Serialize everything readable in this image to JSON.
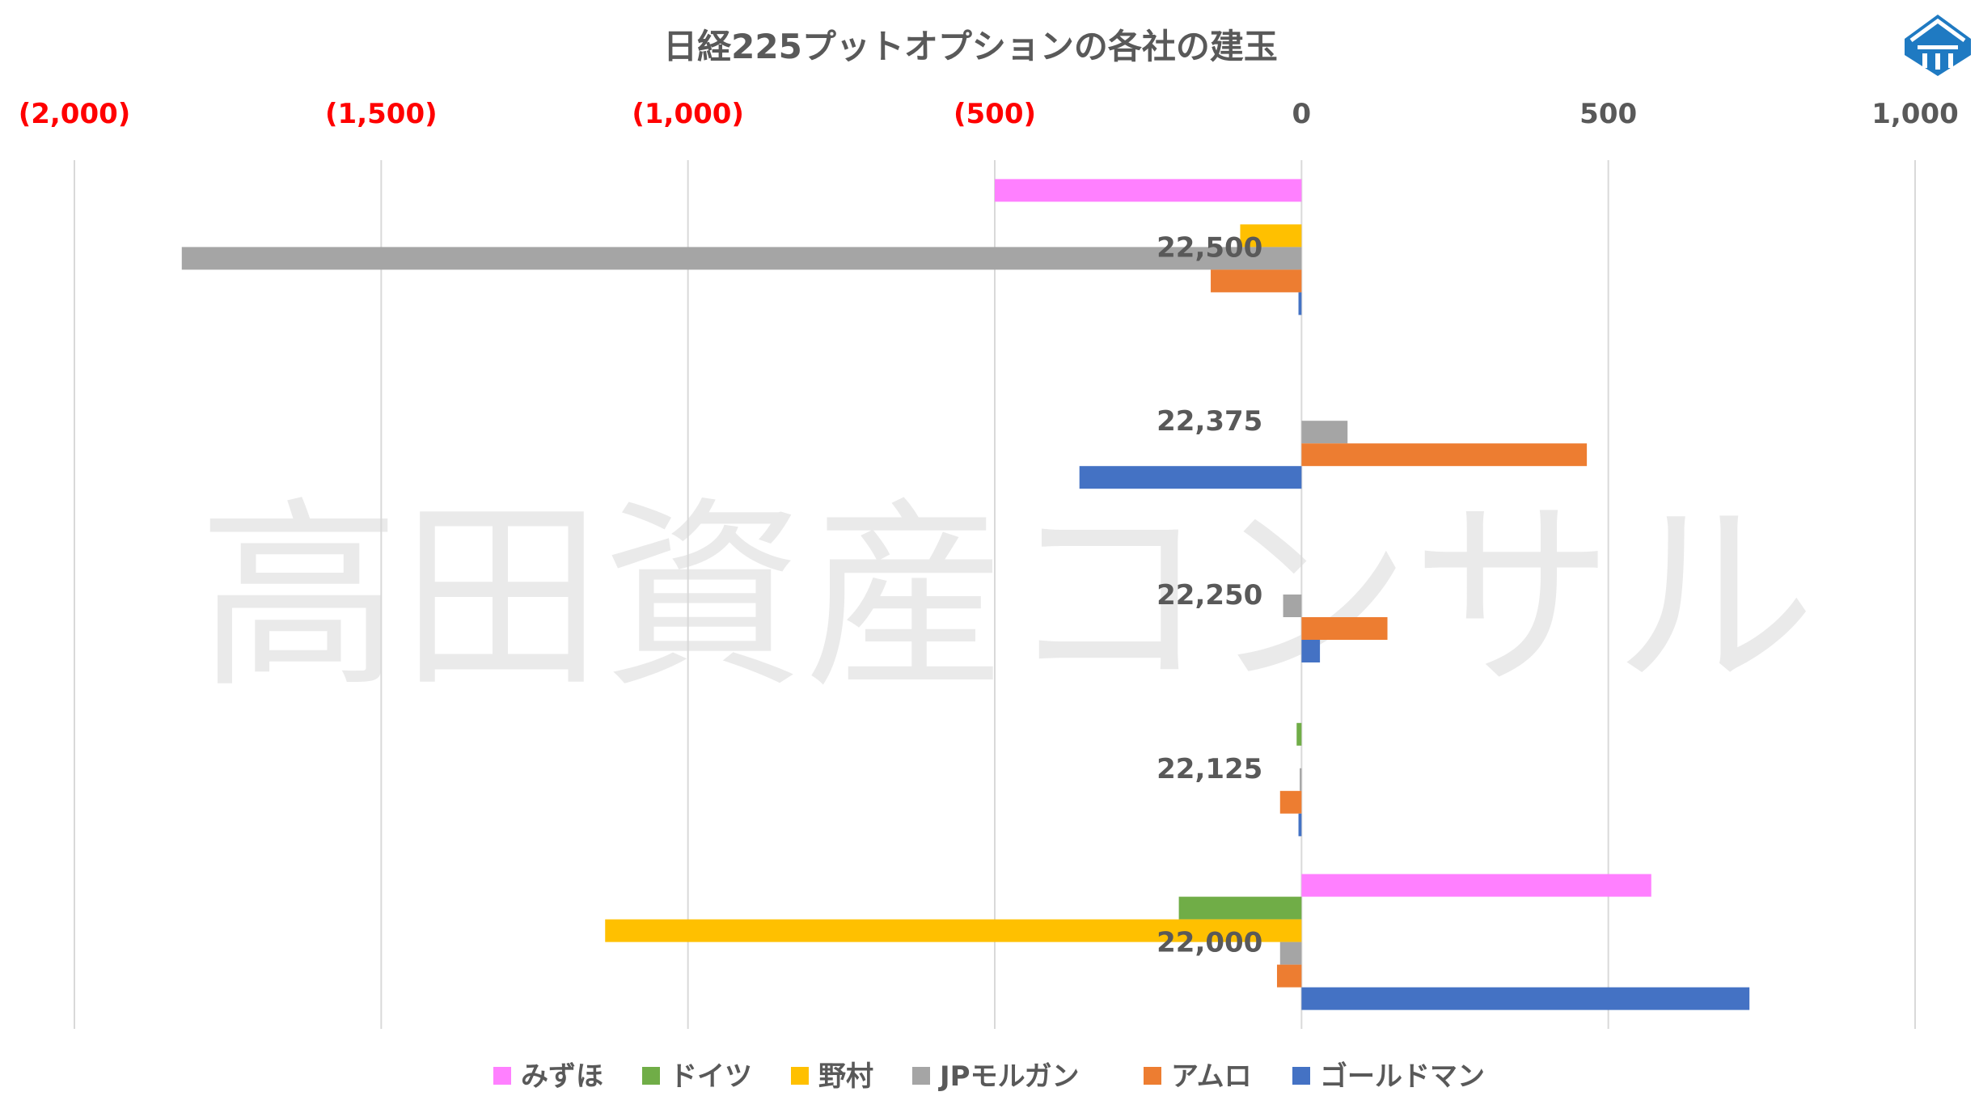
{
  "chart_data": {
    "type": "bar",
    "orientation": "horizontal",
    "title": "日経225プットオプションの各社の建玉",
    "watermark": "高田資産コンサル",
    "categories": [
      "22,500",
      "22,375",
      "22,250",
      "22,125",
      "22,000"
    ],
    "xlim": [
      -2000,
      1000
    ],
    "xticks": [
      {
        "value": -2000,
        "label": "(2,000)"
      },
      {
        "value": -1500,
        "label": "(1,500)"
      },
      {
        "value": -1000,
        "label": "(1,000)"
      },
      {
        "value": -500,
        "label": "(500)"
      },
      {
        "value": 0,
        "label": "0"
      },
      {
        "value": 500,
        "label": "500"
      },
      {
        "value": 1000,
        "label": "1,000"
      }
    ],
    "negative_tick_color": "#ff0000",
    "positive_tick_color": "#595959",
    "gridlines": true,
    "legend_position": "bottom",
    "series": [
      {
        "name": "みずほ",
        "color": "#ff80ff",
        "values": [
          -500,
          0,
          0,
          0,
          570
        ]
      },
      {
        "name": "ドイツ",
        "color": "#70ad47",
        "values": [
          0,
          0,
          0,
          -8,
          -200
        ]
      },
      {
        "name": "野村",
        "color": "#ffc000",
        "values": [
          -100,
          0,
          0,
          0,
          -1135
        ]
      },
      {
        "name": "JPモルガン",
        "color": "#a5a5a5",
        "values": [
          -1825,
          75,
          -30,
          -3,
          -35
        ]
      },
      {
        "name": "アムロ",
        "color": "#ed7d31",
        "values": [
          -148,
          465,
          140,
          -35,
          -40
        ]
      },
      {
        "name": "ゴールドマン",
        "color": "#4472c4",
        "values": [
          -5,
          -362,
          30,
          -5,
          730
        ]
      }
    ],
    "logo": "shield-logo"
  }
}
